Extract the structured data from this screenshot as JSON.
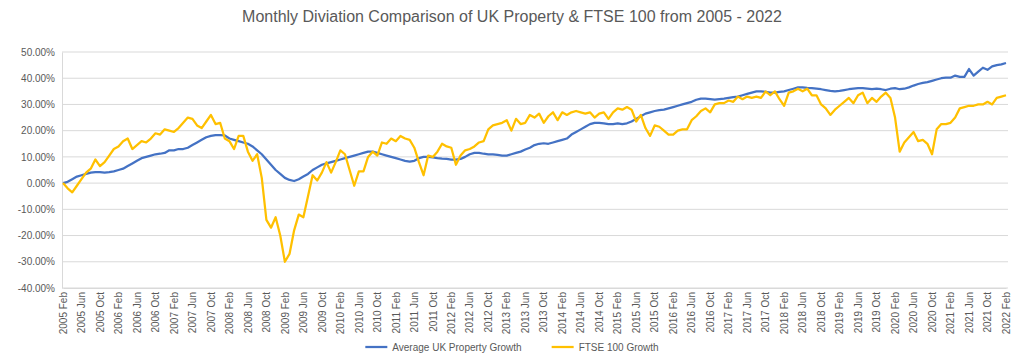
{
  "chart_data": {
    "type": "line",
    "title": "Monthly Diviation Comparison of UK Property & FTSE 100 from 2005 - 2022",
    "categories": [
      "2005 Feb",
      null,
      null,
      null,
      "2005 Jun",
      null,
      null,
      null,
      "2005 Oct",
      null,
      null,
      null,
      "2006 Feb",
      null,
      null,
      null,
      "2006 Jun",
      null,
      null,
      null,
      "2006 Oct",
      null,
      null,
      null,
      "2007 Feb",
      null,
      null,
      null,
      "2007 Jun",
      null,
      null,
      null,
      "2007 Oct",
      null,
      null,
      null,
      "2008 Feb",
      null,
      null,
      null,
      "2008 Jun",
      null,
      null,
      null,
      "2008 Oct",
      null,
      null,
      null,
      "2009 Feb",
      null,
      null,
      null,
      "2009 Jun",
      null,
      null,
      null,
      "2009 Oct",
      null,
      null,
      null,
      "2010 Feb",
      null,
      null,
      null,
      "2010 Jun",
      null,
      null,
      null,
      "2010 Oct",
      null,
      null,
      null,
      "2011 Feb",
      null,
      null,
      null,
      "2011 Jun",
      null,
      null,
      null,
      "2011 Oct",
      null,
      null,
      null,
      "2012 Feb",
      null,
      null,
      null,
      "2012 Jun",
      null,
      null,
      null,
      "2012 Oct",
      null,
      null,
      null,
      "2013 Feb",
      null,
      null,
      null,
      "2013 Jun",
      null,
      null,
      null,
      "2013 Oct",
      null,
      null,
      null,
      "2014 Feb",
      null,
      null,
      null,
      "2014 Jun",
      null,
      null,
      null,
      "2014 Oct",
      null,
      null,
      null,
      "2015 Feb",
      null,
      null,
      null,
      "2015 Jun",
      null,
      null,
      null,
      "2015 Oct",
      null,
      null,
      null,
      "2016 Feb",
      null,
      null,
      null,
      "2016 Jun",
      null,
      null,
      null,
      "2016 Oct",
      null,
      null,
      null,
      "2017 Feb",
      null,
      null,
      null,
      "2017 Jun",
      null,
      null,
      null,
      "2017 Oct",
      null,
      null,
      null,
      "2018 Feb",
      null,
      null,
      null,
      "2018 Jun",
      null,
      null,
      null,
      "2018 Oct",
      null,
      null,
      null,
      "2019 Feb",
      null,
      null,
      null,
      "2019 Jun",
      null,
      null,
      null,
      "2019 Oct",
      null,
      null,
      null,
      "2020 Feb",
      null,
      null,
      null,
      "2020 Jun",
      null,
      null,
      null,
      "2020 Oct",
      null,
      null,
      null,
      "2021 Feb",
      null,
      null,
      null,
      "2021 Jun",
      null,
      null,
      null,
      "2021 Oct",
      null,
      null,
      null,
      "2022 Feb"
    ],
    "series": [
      {
        "name": "Average UK Property Growth",
        "color": "#4472c4",
        "values": [
          0,
          0.5,
          1.5,
          2.5,
          3,
          3.5,
          4,
          4.2,
          4.2,
          4,
          4.2,
          4.5,
          5,
          5.5,
          6.5,
          7.5,
          8.5,
          9.5,
          10,
          10.5,
          11,
          11.2,
          11.5,
          12.5,
          12.5,
          13,
          13,
          13.5,
          14.5,
          15.5,
          16.5,
          17.5,
          18,
          18.3,
          18.3,
          18.2,
          17,
          16.5,
          16,
          15.5,
          15,
          14,
          12.5,
          11,
          9,
          7,
          5,
          3.5,
          2,
          1.2,
          0.8,
          1.5,
          2.5,
          3.5,
          5,
          6,
          7,
          7.5,
          8,
          8.5,
          9,
          9.5,
          10,
          10.5,
          11,
          11.5,
          12,
          12,
          11.5,
          11,
          10.5,
          10,
          9.5,
          9,
          8.5,
          8.2,
          8.5,
          9.5,
          10,
          10,
          9.8,
          9.5,
          9.3,
          9.2,
          9,
          9,
          9.2,
          10,
          11,
          11.5,
          11.5,
          11.2,
          11,
          11,
          10.8,
          10.5,
          10.5,
          11,
          11.5,
          12,
          12.8,
          13.5,
          14.5,
          15,
          15.2,
          15,
          15.5,
          16,
          16.5,
          17,
          18.5,
          19.5,
          20.5,
          21.5,
          22.5,
          23,
          23,
          22.8,
          22.5,
          22.5,
          22.8,
          22.5,
          22.8,
          23.5,
          24.5,
          25.5,
          26.5,
          27,
          27.5,
          27.8,
          28,
          28.5,
          29,
          29.5,
          30,
          30.5,
          31,
          31.8,
          32.2,
          32.2,
          32,
          31.8,
          32,
          32.2,
          32.5,
          32.8,
          33,
          33.5,
          34,
          34.5,
          35,
          35,
          34.8,
          34.5,
          34.5,
          34.8,
          35,
          35.5,
          36,
          36.5,
          36.5,
          36.3,
          36.2,
          36,
          35.8,
          35.5,
          35.2,
          35,
          35.2,
          35.5,
          35.8,
          36,
          36.2,
          36.2,
          36,
          35.8,
          36,
          35.8,
          35.5,
          36,
          36.2,
          35.8,
          36,
          36.5,
          37.2,
          37.8,
          38.2,
          38.5,
          39,
          39.5,
          40,
          40.2,
          40.2,
          41,
          40.5,
          40.5,
          43.5,
          41,
          42.5,
          44,
          43.2,
          44.5,
          45,
          45.3,
          45.8
        ]
      },
      {
        "name": "FTSE 100 Growth",
        "color": "#ffc000",
        "values": [
          0,
          -2,
          -3.5,
          -1,
          1.5,
          4,
          5.5,
          9,
          6.5,
          8,
          10.5,
          13,
          14,
          16,
          17,
          13,
          14.5,
          16,
          15.5,
          17,
          19,
          18.5,
          20.5,
          20,
          19.5,
          21,
          23,
          25,
          24.5,
          22,
          21,
          23.5,
          26,
          22.5,
          23,
          17,
          16,
          13,
          18,
          18,
          12,
          8.5,
          11,
          2,
          -14,
          -17,
          -13,
          -20,
          -30,
          -27,
          -18,
          -12,
          -13,
          -5,
          3,
          1,
          4,
          8,
          4,
          8,
          12.5,
          11,
          5,
          -1,
          4.5,
          4.5,
          10,
          12,
          10.5,
          15.5,
          15,
          17,
          16,
          18,
          17,
          16.5,
          13.5,
          8,
          3,
          10.5,
          10,
          12,
          15,
          14,
          13.5,
          7,
          10.5,
          12.5,
          13,
          14,
          15.5,
          16,
          20.5,
          22,
          22.5,
          23,
          24,
          20,
          24.5,
          22.5,
          23,
          26,
          25,
          26.5,
          23,
          25.5,
          27,
          24,
          27,
          26,
          27,
          27.5,
          27,
          26.5,
          27,
          25,
          26.5,
          27,
          24.5,
          27,
          28.5,
          28,
          29,
          28,
          23.5,
          26,
          21,
          18,
          22,
          21.5,
          20,
          18.5,
          18.5,
          20,
          20.5,
          20.5,
          24,
          25.5,
          27.5,
          28.5,
          27,
          30,
          30.5,
          30.5,
          31.5,
          31,
          33,
          32,
          33,
          32.5,
          33,
          32.5,
          35,
          33.5,
          35,
          32,
          29.5,
          34.5,
          35,
          36,
          35,
          36,
          33.5,
          33.5,
          30,
          28.5,
          26,
          28,
          29.5,
          31,
          32.5,
          30.5,
          33.5,
          34.5,
          30.5,
          32.5,
          31,
          33,
          34.5,
          32.5,
          25,
          12,
          15.5,
          17.5,
          19.5,
          16,
          16.5,
          15,
          11,
          20.5,
          22.5,
          22.5,
          23,
          25,
          28.5,
          29,
          29.5,
          29.5,
          30,
          30,
          31,
          30,
          32.5,
          33,
          33.5
        ]
      }
    ],
    "ylim": [
      -40,
      50
    ],
    "yticks": [
      {
        "value": -40,
        "label": "-40.00%"
      },
      {
        "value": -30,
        "label": "-30.00%"
      },
      {
        "value": -20,
        "label": "-20.00%"
      },
      {
        "value": -10,
        "label": "-10.00%"
      },
      {
        "value": 0,
        "label": "0.00%"
      },
      {
        "value": 10,
        "label": "10.00%"
      },
      {
        "value": 20,
        "label": "20.00%"
      },
      {
        "value": 30,
        "label": "30.00%"
      },
      {
        "value": 40,
        "label": "40.00%"
      },
      {
        "value": 50,
        "label": "50.00%"
      }
    ],
    "grid": true,
    "legend": "bottom"
  }
}
